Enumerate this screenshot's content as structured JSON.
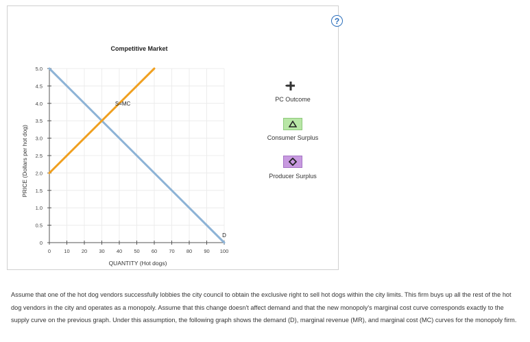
{
  "help_label": "?",
  "chart_data": {
    "type": "line",
    "title": "Competitive Market",
    "xlabel": "QUANTITY (Hot dogs)",
    "ylabel": "PRICE (Dollars per hot dog)",
    "xlim": [
      0,
      100
    ],
    "ylim": [
      0,
      5
    ],
    "x_ticks": [
      "0",
      "10",
      "20",
      "30",
      "40",
      "50",
      "60",
      "70",
      "80",
      "90",
      "100"
    ],
    "y_ticks": [
      "0",
      "0.5",
      "1.0",
      "1.5",
      "2.0",
      "2.5",
      "3.0",
      "3.5",
      "4.0",
      "4.5",
      "5.0"
    ],
    "grid": true,
    "series": [
      {
        "name": "D",
        "color": "#8db3d6",
        "x": [
          0,
          100
        ],
        "y": [
          5.0,
          0
        ]
      },
      {
        "name": "S=MC",
        "color": "#f0a020",
        "x": [
          0,
          60
        ],
        "y": [
          2.0,
          5.0
        ]
      }
    ]
  },
  "legend": {
    "pc_outcome": "PC Outcome",
    "consumer_surplus": "Consumer Surplus",
    "producer_surplus": "Producer Surplus",
    "pc_color": "#444444",
    "cs_color": "#b8e6a6",
    "ps_color": "#c89ae0"
  },
  "description": "Assume that one of the hot dog vendors successfully lobbies the city council to obtain the exclusive right to sell hot dogs within the city limits. This firm buys up all the rest of the hot dog vendors in the city and operates as a monopoly. Assume that this change doesn't affect demand and that the new monopoly's marginal cost curve corresponds exactly to the supply curve on the previous graph. Under this assumption, the following graph shows the demand (D), marginal revenue (MR), and marginal cost (MC) curves for the monopoly firm."
}
